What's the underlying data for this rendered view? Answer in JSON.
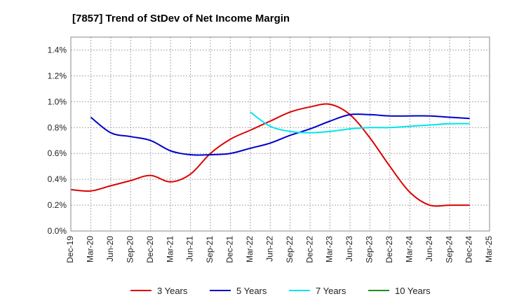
{
  "chart_data": {
    "type": "line",
    "title": "[7857]  Trend of StDev of Net Income Margin",
    "xlabel": "",
    "ylabel": "",
    "x": [
      "Dec-19",
      "Mar-20",
      "Jun-20",
      "Sep-20",
      "Dec-20",
      "Mar-21",
      "Jun-21",
      "Sep-21",
      "Dec-21",
      "Mar-22",
      "Jun-22",
      "Sep-22",
      "Dec-22",
      "Mar-23",
      "Jun-23",
      "Sep-23",
      "Dec-23",
      "Mar-24",
      "Jun-24",
      "Sep-24",
      "Dec-24",
      "Mar-25"
    ],
    "ylim": [
      0,
      1.5
    ],
    "yticks": [
      0.0,
      0.2,
      0.4,
      0.6,
      0.8,
      1.0,
      1.2,
      1.4
    ],
    "ytick_labels": [
      "0.0%",
      "0.2%",
      "0.4%",
      "0.6%",
      "0.8%",
      "1.0%",
      "1.2%",
      "1.4%"
    ],
    "grid": true,
    "legend_position": "bottom",
    "series": [
      {
        "name": "3 Years",
        "color": "#dd0000",
        "values": [
          0.32,
          0.31,
          0.35,
          0.39,
          0.43,
          0.38,
          0.44,
          0.6,
          0.71,
          0.78,
          0.85,
          0.92,
          0.96,
          0.98,
          0.9,
          0.72,
          0.5,
          0.3,
          0.2,
          0.2,
          0.2,
          null
        ]
      },
      {
        "name": "5 Years",
        "color": "#0000cc",
        "values": [
          null,
          0.88,
          0.76,
          0.73,
          0.7,
          0.62,
          0.59,
          0.59,
          0.6,
          0.64,
          0.68,
          0.74,
          0.79,
          0.85,
          0.9,
          0.9,
          0.89,
          0.89,
          0.89,
          0.88,
          0.87,
          null
        ]
      },
      {
        "name": "7 Years",
        "color": "#00e5ee",
        "values": [
          null,
          null,
          null,
          null,
          null,
          null,
          null,
          null,
          null,
          0.92,
          0.81,
          0.77,
          0.76,
          0.77,
          0.79,
          0.8,
          0.8,
          0.81,
          0.82,
          0.83,
          0.83,
          null
        ]
      },
      {
        "name": "10 Years",
        "color": "#228b22",
        "values": [
          null,
          null,
          null,
          null,
          null,
          null,
          null,
          null,
          null,
          null,
          null,
          null,
          null,
          null,
          null,
          null,
          null,
          null,
          null,
          null,
          null,
          null
        ]
      }
    ]
  }
}
